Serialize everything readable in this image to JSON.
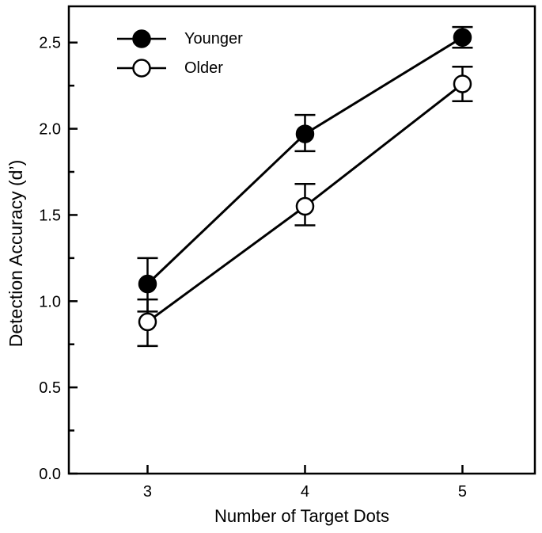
{
  "figure": {
    "background_color": "#ffffff",
    "line_color": "#000000"
  },
  "chart_data": {
    "type": "line",
    "title": "",
    "xlabel": "Number of Target Dots",
    "ylabel": "Detection Accuracy (d’)",
    "x": [
      3,
      4,
      5
    ],
    "x_tick_labels": [
      "3",
      "4",
      "5"
    ],
    "xlim": [
      2.5,
      5.46
    ],
    "ylim": [
      0,
      2.71
    ],
    "y_major_ticks": [
      0.0,
      0.5,
      1.0,
      1.5,
      2.0,
      2.5
    ],
    "y_tick_labels": [
      "0.0",
      "0.5",
      "1.0",
      "1.5",
      "2.0",
      "2.5"
    ],
    "y_minor_ticks": [
      0.25,
      0.75,
      1.25,
      1.75,
      2.25
    ],
    "grid": false,
    "legend_position": "top-left",
    "series": [
      {
        "name": "Younger",
        "marker": "filled-circle-icon",
        "marker_fill": "#000000",
        "values": [
          1.1,
          1.97,
          2.53
        ],
        "error_upper": [
          1.25,
          2.08,
          2.59
        ],
        "error_lower": [
          0.94,
          1.87,
          2.47
        ]
      },
      {
        "name": "Older",
        "marker": "open-circle-icon",
        "marker_fill": "#ffffff",
        "values": [
          0.88,
          1.55,
          2.26
        ],
        "error_upper": [
          1.01,
          1.68,
          2.36
        ],
        "error_lower": [
          0.74,
          1.44,
          2.16
        ]
      }
    ]
  }
}
